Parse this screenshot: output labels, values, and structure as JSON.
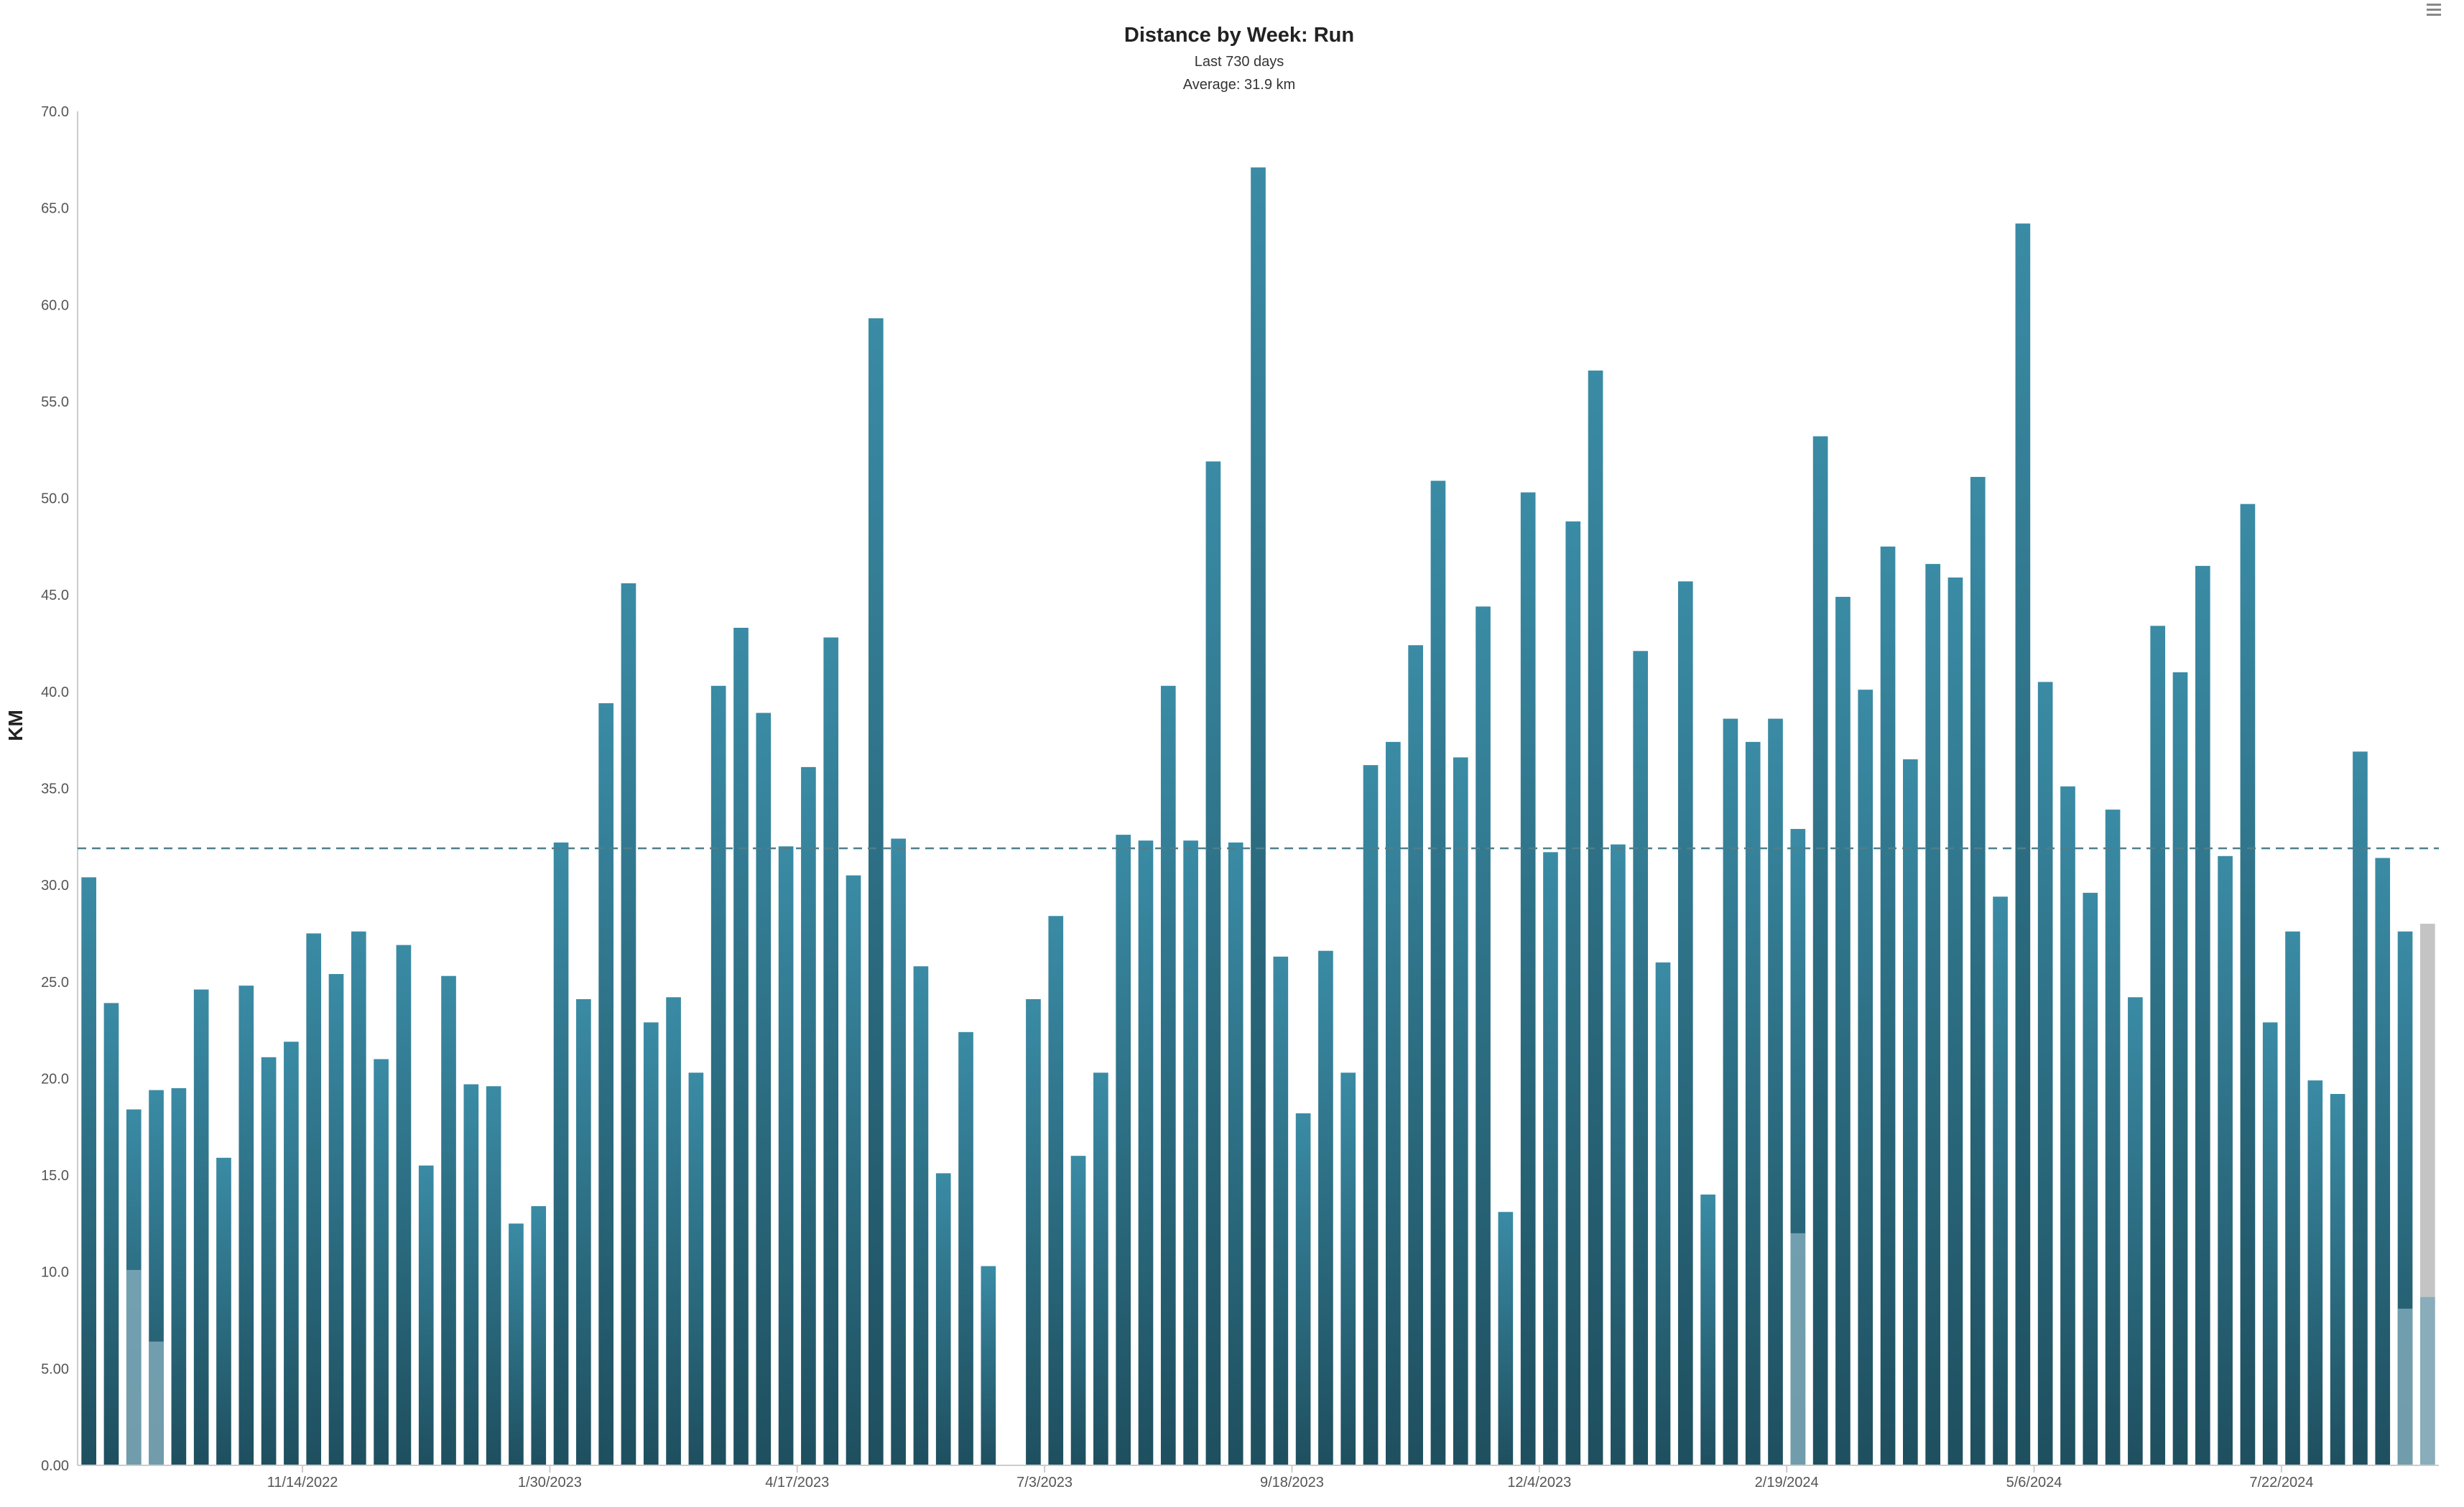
{
  "chart_data": {
    "type": "bar",
    "title": "Distance by Week: Run",
    "subtitle": "Last 730 days",
    "average_label": "Average: 31.9 km",
    "average": 31.9,
    "ylabel": "KM",
    "xlabel": "",
    "ylim": [
      0,
      70
    ],
    "y_tick_labels": [
      "0.00",
      "5.00",
      "10.0",
      "15.0",
      "20.0",
      "25.0",
      "30.0",
      "35.0",
      "40.0",
      "45.0",
      "50.0",
      "55.0",
      "60.0",
      "65.0",
      "70.0"
    ],
    "x_tick_labels": [
      {
        "week_index": 10,
        "label": "11/14/2022"
      },
      {
        "week_index": 21,
        "label": "1/30/2023"
      },
      {
        "week_index": 32,
        "label": "4/17/2023"
      },
      {
        "week_index": 43,
        "label": "7/3/2023"
      },
      {
        "week_index": 54,
        "label": "9/18/2023"
      },
      {
        "week_index": 65,
        "label": "12/4/2023"
      },
      {
        "week_index": 76,
        "label": "2/19/2024"
      },
      {
        "week_index": 87,
        "label": "5/6/2024"
      },
      {
        "week_index": 98,
        "label": "7/22/2024"
      }
    ],
    "grid": false,
    "legend": "none",
    "colors": {
      "bar_top": "#3a8ba5",
      "bar_bottom": "#1e4f5f",
      "highlight": "#7fa9b8",
      "current_week": "#c4c4c4",
      "average_line": "#4f7f8c",
      "axis": "#cccccc"
    },
    "series": [
      {
        "values": [
          30.4,
          23.9,
          18.4,
          19.4,
          19.5,
          24.6,
          15.9,
          24.8,
          21.1,
          21.9,
          27.5,
          25.4,
          27.6,
          21.0,
          26.9,
          15.5,
          25.3,
          19.7,
          19.6,
          12.5,
          13.4,
          32.2,
          24.1,
          39.4,
          45.6,
          22.9,
          24.2,
          20.3,
          40.3,
          43.3,
          38.9,
          32.0,
          36.1,
          42.8,
          30.5,
          59.3,
          32.4,
          25.8,
          15.1,
          22.4,
          10.3,
          0,
          24.1,
          28.4,
          16.0,
          20.3,
          32.6,
          32.3,
          40.3,
          32.3,
          51.9,
          32.2,
          67.1,
          26.3,
          18.2,
          26.6,
          20.3,
          36.2,
          37.4,
          42.4,
          50.9,
          36.6,
          44.4,
          13.1,
          50.3,
          31.7,
          48.8,
          56.6,
          32.1,
          42.1,
          26.0,
          45.7,
          14.0,
          38.6,
          37.4,
          38.6,
          32.9,
          53.2,
          44.9,
          40.1,
          47.5,
          36.5,
          46.6,
          45.9,
          51.1,
          29.4,
          64.2,
          40.5,
          35.1,
          29.6,
          33.9,
          24.2,
          43.4,
          41.0,
          46.5,
          31.5,
          49.7,
          22.9,
          27.6,
          19.9,
          19.2,
          36.9,
          31.4,
          27.6,
          28.0
        ]
      }
    ],
    "highlighted_segments": [
      {
        "week_index": 2,
        "value": 10.1
      },
      {
        "week_index": 3,
        "value": 6.4
      },
      {
        "week_index": 76,
        "value": 12.0
      },
      {
        "week_index": 103,
        "value": 8.1
      },
      {
        "week_index": 104,
        "value": 8.7
      }
    ],
    "current_week_index": 104
  },
  "menu_icon": "hamburger-menu-icon"
}
